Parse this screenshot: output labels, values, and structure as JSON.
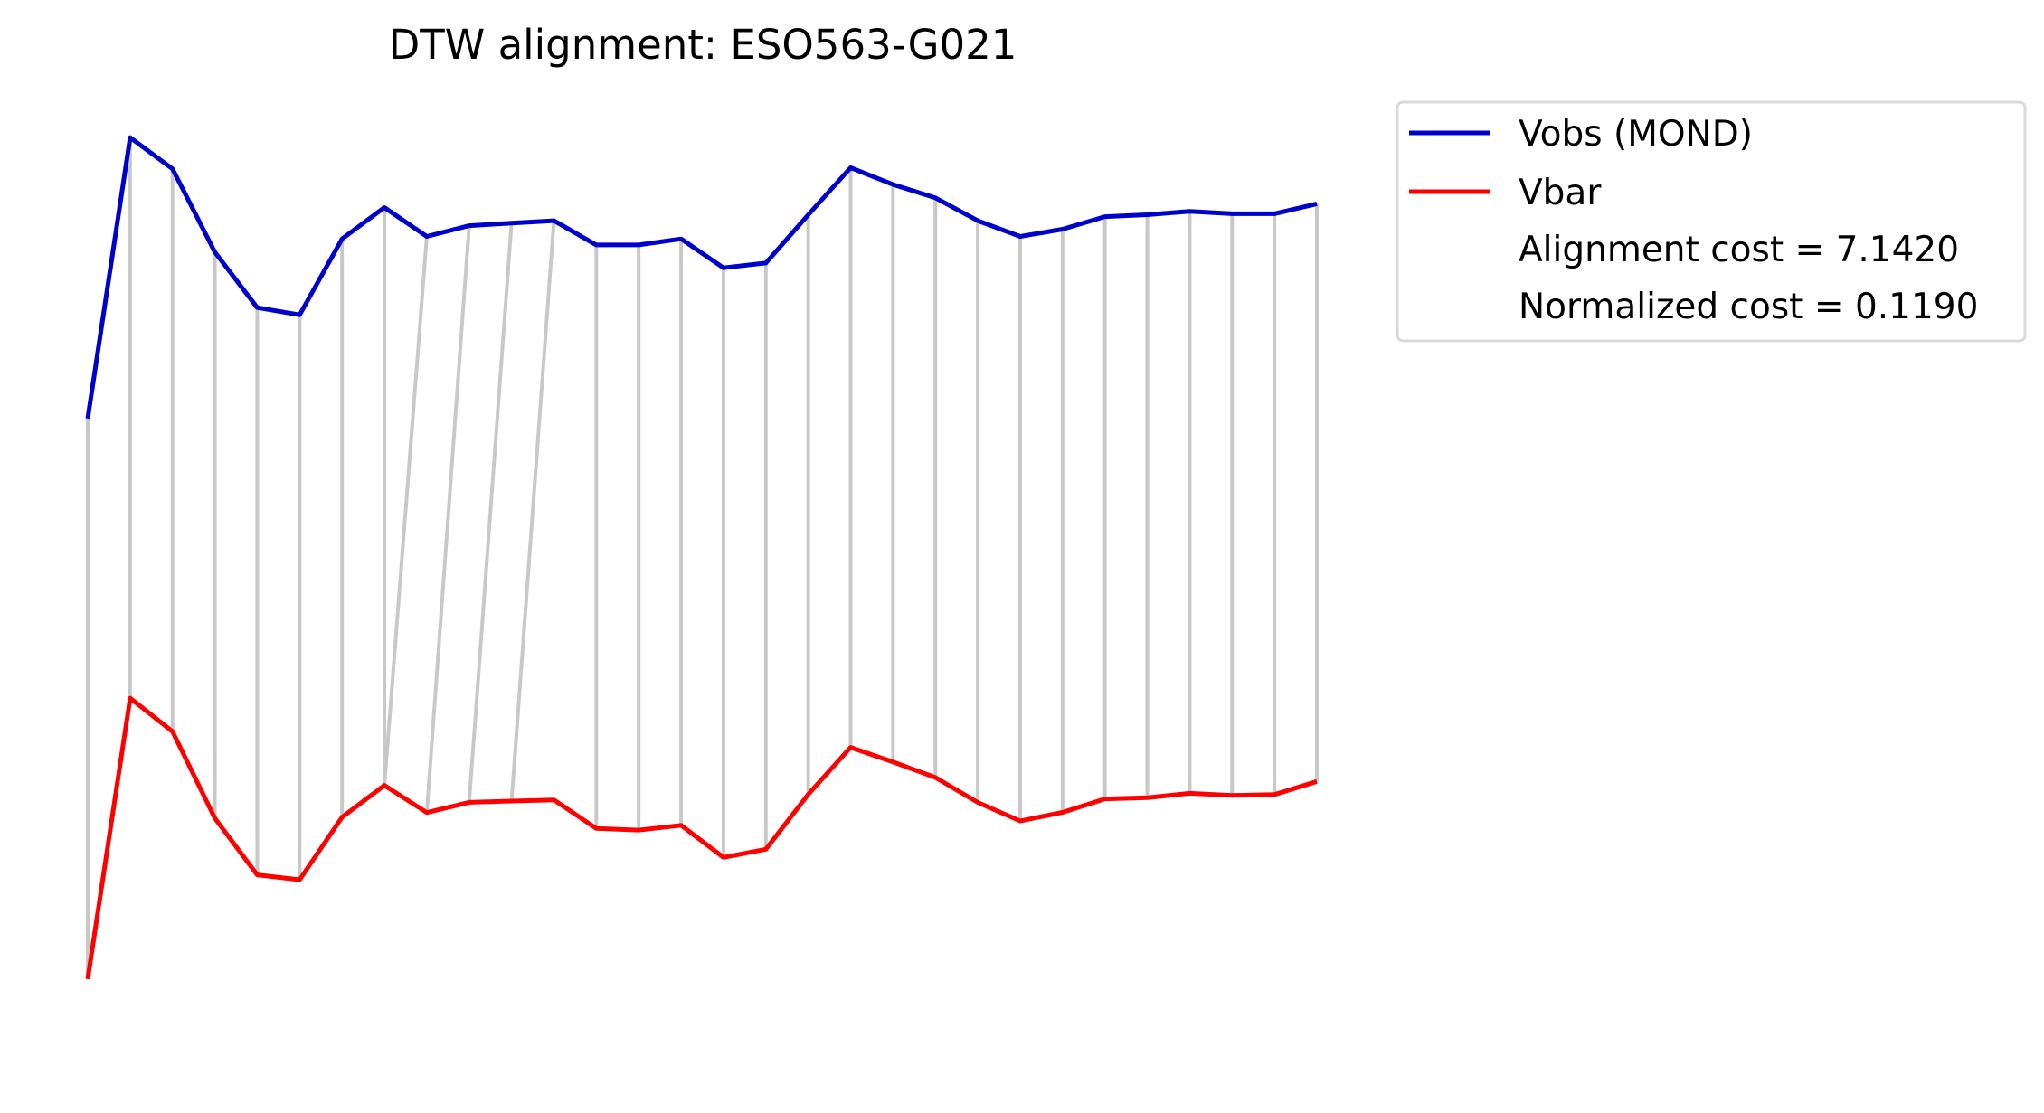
{
  "chart_data": {
    "type": "line",
    "title": "DTW alignment: ESO563-G021",
    "xlabel": "",
    "ylabel": "",
    "axes_visible": false,
    "grid": false,
    "legend_position": "upper right, outside plot",
    "series": [
      {
        "name": "Vobs (MOND)",
        "color": "#0000cc",
        "values": [
          0.6845,
          0.991,
          0.9568,
          0.866,
          0.8055,
          0.7976,
          0.8805,
          0.9147,
          0.8831,
          0.8949,
          0.8976,
          0.9003,
          0.8739,
          0.8739,
          0.8805,
          0.8489,
          0.8541,
          0.9068,
          0.9581,
          0.9397,
          0.9252,
          0.9003,
          0.8831,
          0.891,
          0.9047,
          0.9068,
          0.9105,
          0.9079,
          0.9079,
          0.9187
        ]
      },
      {
        "name": "Vbar",
        "color": "#ff0000",
        "values": [
          0.0731,
          0.3796,
          0.3432,
          0.2485,
          0.1868,
          0.1815,
          0.2497,
          0.2844,
          0.2547,
          0.2659,
          0.2673,
          0.2685,
          0.2374,
          0.2356,
          0.2408,
          0.2058,
          0.2147,
          0.2747,
          0.3258,
          0.3099,
          0.293,
          0.2658,
          0.2456,
          0.2549,
          0.2696,
          0.2709,
          0.2757,
          0.2734,
          0.2744,
          0.2887
        ]
      }
    ],
    "alignment_pairs": [
      [
        0,
        0
      ],
      [
        1,
        1
      ],
      [
        2,
        2
      ],
      [
        3,
        3
      ],
      [
        4,
        4
      ],
      [
        5,
        5
      ],
      [
        6,
        6
      ],
      [
        7,
        7
      ],
      [
        8,
        7
      ],
      [
        9,
        8
      ],
      [
        10,
        9
      ],
      [
        11,
        10
      ],
      [
        12,
        12
      ],
      [
        13,
        13
      ],
      [
        14,
        14
      ],
      [
        15,
        15
      ],
      [
        16,
        16
      ],
      [
        17,
        17
      ],
      [
        18,
        18
      ],
      [
        19,
        19
      ],
      [
        20,
        20
      ],
      [
        21,
        21
      ],
      [
        22,
        22
      ],
      [
        23,
        23
      ],
      [
        24,
        24
      ],
      [
        25,
        25
      ],
      [
        26,
        26
      ],
      [
        27,
        27
      ],
      [
        28,
        28
      ],
      [
        29,
        29
      ]
    ],
    "alignment_line_color": "#c8c8c8",
    "legend_notes": [
      "Alignment cost = 7.1420",
      "Normalized cost = 0.1190"
    ]
  }
}
